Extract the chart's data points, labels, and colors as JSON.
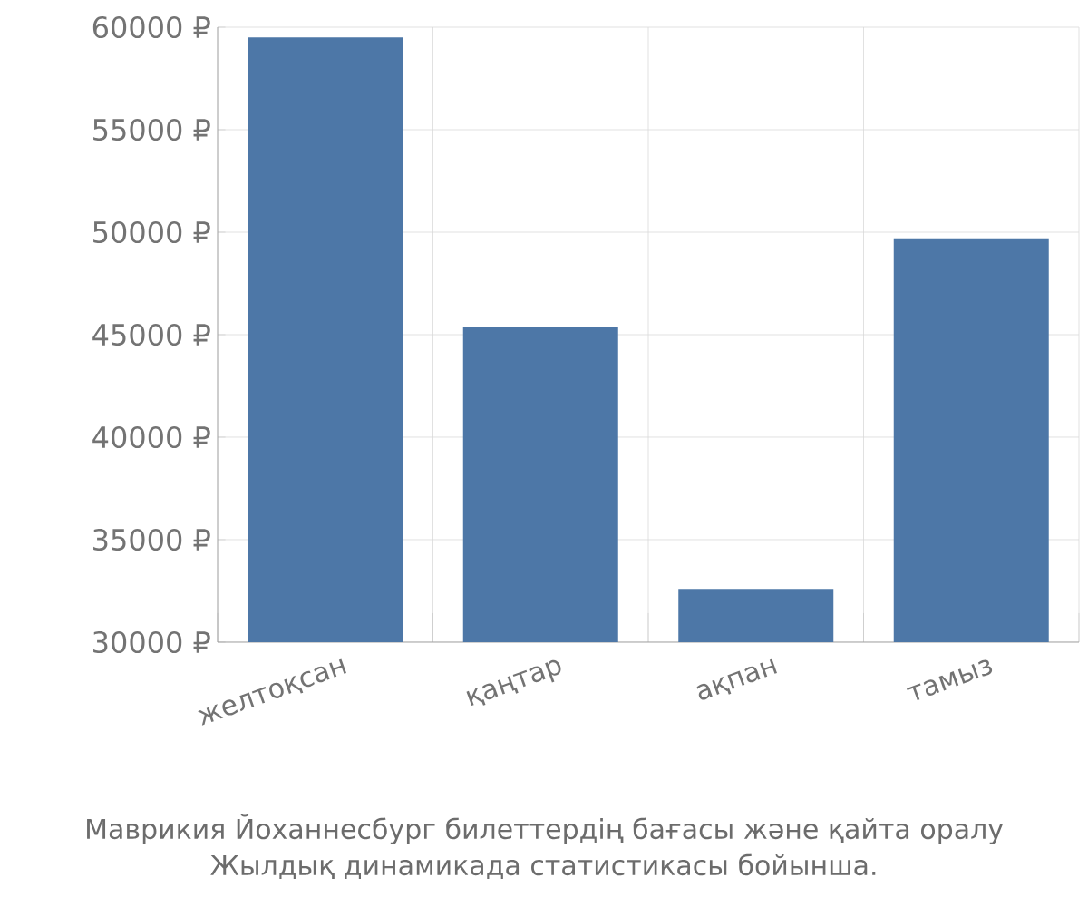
{
  "chart_data": {
    "type": "bar",
    "categories": [
      "желтоқсан",
      "қаңтар",
      "ақпан",
      "тамыз"
    ],
    "values": [
      59500,
      45400,
      32600,
      49700
    ],
    "color": "#4d77a7",
    "ylim": [
      30000,
      60000
    ],
    "yticks": [
      {
        "value": 30000,
        "label": "30000 ₽"
      },
      {
        "value": 35000,
        "label": "35000 ₽"
      },
      {
        "value": 40000,
        "label": "40000 ₽"
      },
      {
        "value": 45000,
        "label": "45000 ₽"
      },
      {
        "value": 50000,
        "label": "50000 ₽"
      },
      {
        "value": 55000,
        "label": "55000 ₽"
      },
      {
        "value": 60000,
        "label": "60000 ₽"
      }
    ],
    "grid": true,
    "annotations": [
      "Маврикия Йоханнесбург билеттердің бағасы және қайта оралу",
      "Жылдық динамикада статистикасы бойынша."
    ]
  }
}
